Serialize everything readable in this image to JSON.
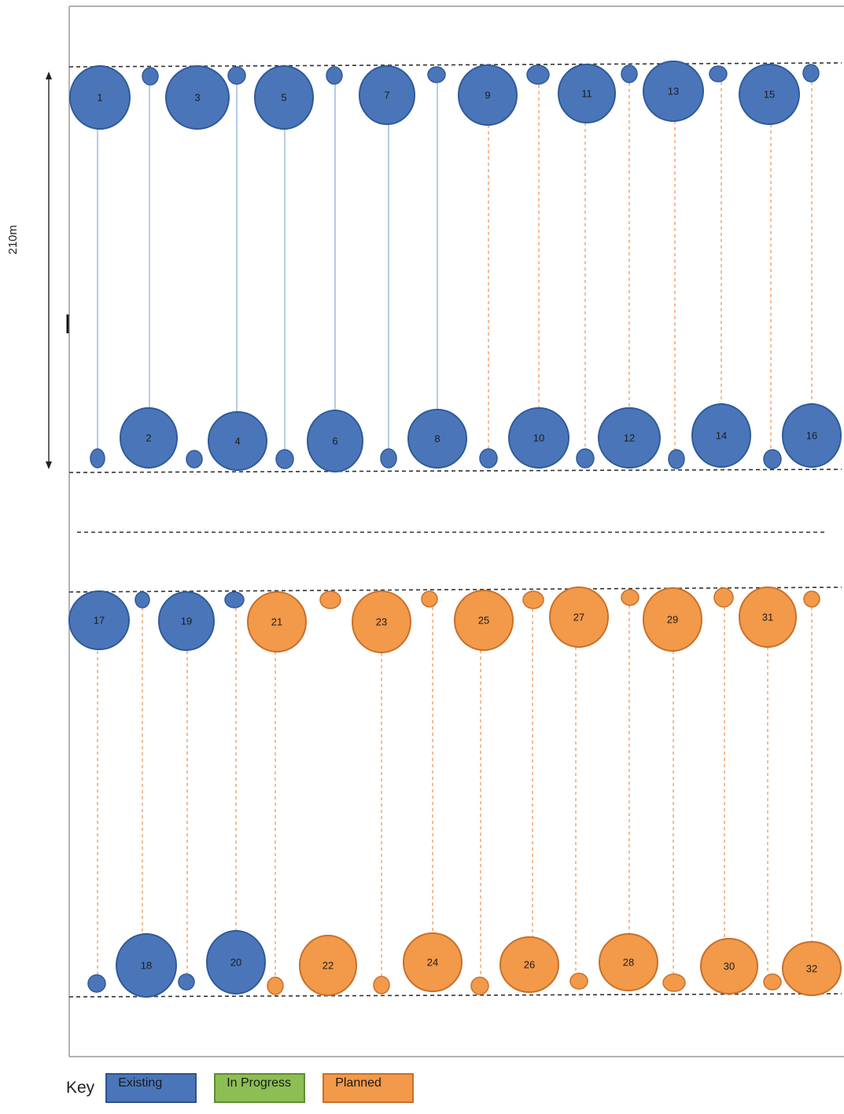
{
  "scale_label": "210m",
  "key": {
    "title": "Key",
    "items": [
      {
        "label": "Existing",
        "color": "#4a76b9",
        "border": "#2d538c"
      },
      {
        "label": "In Progress",
        "color": "#8bbf53",
        "border": "#5f8c35"
      },
      {
        "label": "Planned",
        "color": "#f2994a",
        "border": "#c8702a"
      }
    ]
  },
  "colors": {
    "existing": "#4a76b9",
    "existing_stroke": "#2f5a9a",
    "planned": "#f2994a",
    "planned_stroke": "#c8702a",
    "existing_line": "#8fb0de",
    "planned_line": "#f4a978"
  },
  "wells_top": [
    {
      "label": "1",
      "status": "existing"
    },
    {
      "label": "2",
      "status": "existing"
    },
    {
      "label": "3",
      "status": "existing"
    },
    {
      "label": "4",
      "status": "existing"
    },
    {
      "label": "5",
      "status": "existing"
    },
    {
      "label": "6",
      "status": "existing"
    },
    {
      "label": "7",
      "status": "existing"
    },
    {
      "label": "8",
      "status": "existing"
    },
    {
      "label": "9",
      "status": "existing"
    },
    {
      "label": "10",
      "status": "existing"
    },
    {
      "label": "11",
      "status": "existing"
    },
    {
      "label": "12",
      "status": "existing"
    },
    {
      "label": "13",
      "status": "existing"
    },
    {
      "label": "14",
      "status": "existing"
    },
    {
      "label": "15",
      "status": "existing"
    },
    {
      "label": "16",
      "status": "existing"
    }
  ],
  "wells_bottom": [
    {
      "label": "17",
      "status": "existing"
    },
    {
      "label": "18",
      "status": "existing"
    },
    {
      "label": "19",
      "status": "existing"
    },
    {
      "label": "20",
      "status": "existing"
    },
    {
      "label": "21",
      "status": "planned"
    },
    {
      "label": "22",
      "status": "planned"
    },
    {
      "label": "23",
      "status": "planned"
    },
    {
      "label": "24",
      "status": "planned"
    },
    {
      "label": "25",
      "status": "planned"
    },
    {
      "label": "26",
      "status": "planned"
    },
    {
      "label": "27",
      "status": "planned"
    },
    {
      "label": "28",
      "status": "planned"
    },
    {
      "label": "29",
      "status": "planned"
    },
    {
      "label": "30",
      "status": "planned"
    },
    {
      "label": "31",
      "status": "planned"
    },
    {
      "label": "32",
      "status": "planned"
    }
  ],
  "connections_top": [
    {
      "status": "existing",
      "style": "solid"
    },
    {
      "status": "existing",
      "style": "solid"
    },
    {
      "status": "existing",
      "style": "solid"
    },
    {
      "status": "existing",
      "style": "solid"
    },
    {
      "status": "existing",
      "style": "solid"
    },
    {
      "status": "existing",
      "style": "solid"
    },
    {
      "status": "existing",
      "style": "solid"
    },
    {
      "status": "existing",
      "style": "solid"
    },
    {
      "status": "planned",
      "style": "dashed"
    },
    {
      "status": "planned",
      "style": "dashed"
    },
    {
      "status": "planned",
      "style": "dashed"
    },
    {
      "status": "planned",
      "style": "dashed"
    },
    {
      "status": "planned",
      "style": "dashed"
    },
    {
      "status": "planned",
      "style": "dashed"
    },
    {
      "status": "planned",
      "style": "dashed"
    },
    {
      "status": "planned",
      "style": "dashed"
    }
  ],
  "connections_bottom": [
    {
      "status": "planned",
      "style": "dashed"
    },
    {
      "status": "planned",
      "style": "dashed"
    },
    {
      "status": "planned",
      "style": "dashed"
    },
    {
      "status": "planned",
      "style": "dashed"
    },
    {
      "status": "planned",
      "style": "dashed"
    },
    {
      "status": "planned",
      "style": "dashed"
    },
    {
      "status": "planned",
      "style": "dashed"
    },
    {
      "status": "planned",
      "style": "dashed"
    },
    {
      "status": "planned",
      "style": "dashed"
    },
    {
      "status": "planned",
      "style": "dashed"
    },
    {
      "status": "planned",
      "style": "dashed"
    },
    {
      "status": "planned",
      "style": "dashed"
    },
    {
      "status": "planned",
      "style": "dashed"
    },
    {
      "status": "planned",
      "style": "dashed"
    },
    {
      "status": "planned",
      "style": "dashed"
    },
    {
      "status": "planned",
      "style": "dashed"
    }
  ]
}
